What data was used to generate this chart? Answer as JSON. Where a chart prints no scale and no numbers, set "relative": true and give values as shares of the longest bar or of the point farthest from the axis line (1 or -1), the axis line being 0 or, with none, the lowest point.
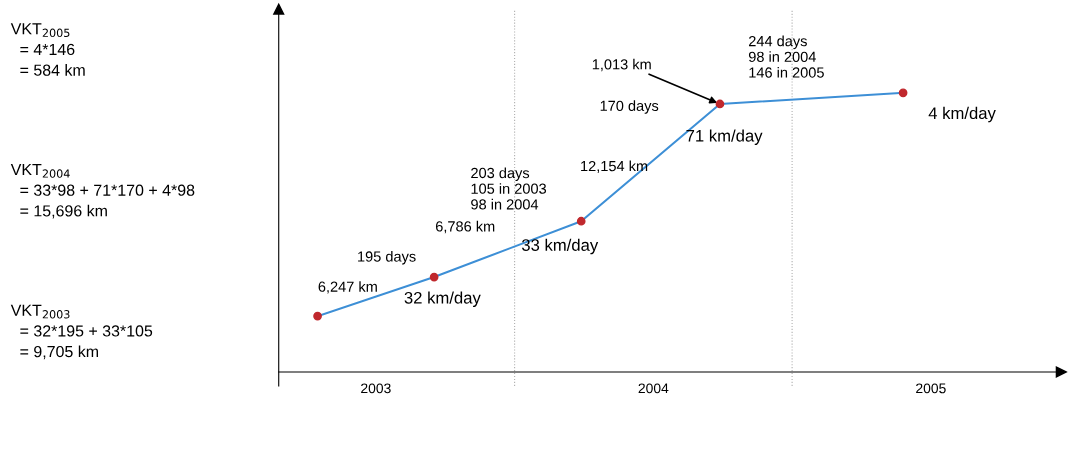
{
  "chart_data": {
    "type": "line",
    "relative": true,
    "x": [
      2003.29,
      2003.71,
      2004.24,
      2004.74,
      2005.4
    ],
    "series": [
      {
        "color": "#3d8fd6",
        "colors": [
          "#c0282d",
          "#c0282d",
          "#c0282d",
          "#c0282d",
          "#c0282d"
        ],
        "values": [
          0.2,
          0.34,
          0.54,
          0.96,
          1.0
        ]
      }
    ],
    "marker": "circle",
    "line_style": "solid",
    "xlim": [
      2003.15,
      2005.97
    ],
    "xticks": [
      {
        "value": 2003.5,
        "label": "2003"
      },
      {
        "value": 2004.5,
        "label": "2004"
      },
      {
        "value": 2005.5,
        "label": "2005"
      }
    ],
    "tick_labels": "x",
    "grid": false,
    "legend": false,
    "ref_lines": [
      {
        "axis": "x",
        "value": 2004,
        "color": "#b0b0b0",
        "line_style": "dotted"
      },
      {
        "axis": "x",
        "value": 2005,
        "color": "#b0b0b0",
        "line_style": "dotted"
      }
    ],
    "annotations": [
      "VKT$_{2005}$\n  = 4*146\n  = 584 km",
      "VKT$_{2004}$\n  = 33*98 + 71*170 + 4*98\n  = 15,696 km",
      "VKT$_{2003}$\n  = 32*195 + 33*105\n  = 9,705 km",
      "6,247 km",
      "195 days",
      "32 km/day",
      "6,786 km",
      "203 days\n105 in 2003\n98 in 2004",
      "33 km/day",
      "12,154 km",
      "170 days",
      "71 km/day",
      "1,013 km",
      "244 days\n98 in 2004\n146 in 2005",
      "4 km/day"
    ]
  }
}
